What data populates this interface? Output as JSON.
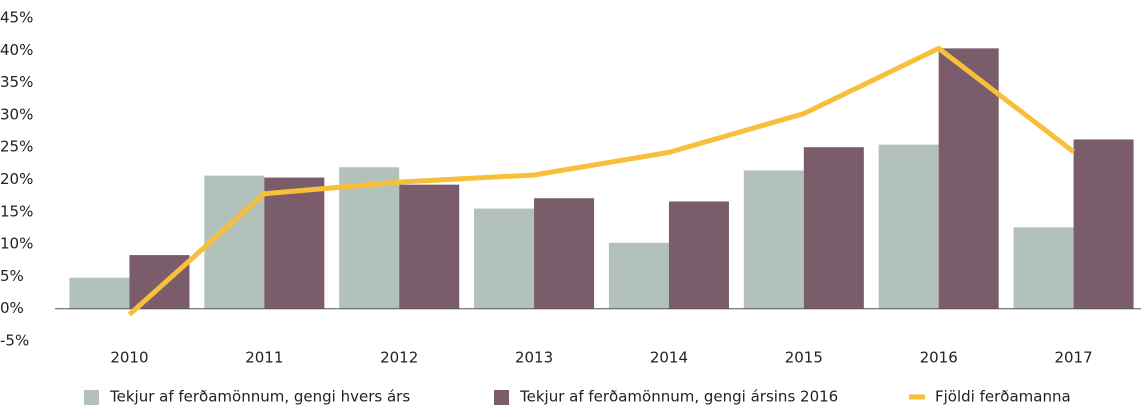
{
  "chart_data": {
    "type": "bar_line",
    "categories": [
      "2010",
      "2011",
      "2012",
      "2013",
      "2014",
      "2015",
      "2016",
      "2017"
    ],
    "series": [
      {
        "name": "Tekjur af ferðamönnum, gengi hvers árs",
        "type": "bar",
        "color": "#b3c1bb",
        "values": [
          4.8,
          20.6,
          21.9,
          15.5,
          10.2,
          21.4,
          25.4,
          12.6
        ]
      },
      {
        "name": "Tekjur af ferðamönnum, gengi ársins 2016",
        "type": "bar",
        "color": "#7b5c6b",
        "values": [
          8.3,
          20.3,
          19.2,
          17.1,
          16.6,
          25.0,
          40.3,
          26.2
        ]
      },
      {
        "name": "Fjöldi ferðamanna",
        "type": "line",
        "color": "#f8bf3a",
        "values": [
          -0.9,
          17.8,
          19.6,
          20.7,
          24.2,
          30.2,
          40.3,
          24.3
        ]
      }
    ],
    "ylim": [
      -5,
      45
    ],
    "yticks": [
      {
        "value": -5,
        "label": "-5%"
      },
      {
        "value": 0,
        "label": "0%"
      },
      {
        "value": 5,
        "label": "5%"
      },
      {
        "value": 10,
        "label": "10%"
      },
      {
        "value": 15,
        "label": "15%"
      },
      {
        "value": 20,
        "label": "20%"
      },
      {
        "value": 25,
        "label": "25%"
      },
      {
        "value": 30,
        "label": "30%"
      },
      {
        "value": 35,
        "label": "35%"
      },
      {
        "value": 40,
        "label": "40%"
      },
      {
        "value": 45,
        "label": "45%"
      }
    ],
    "legend": "bottom",
    "grid": false
  }
}
